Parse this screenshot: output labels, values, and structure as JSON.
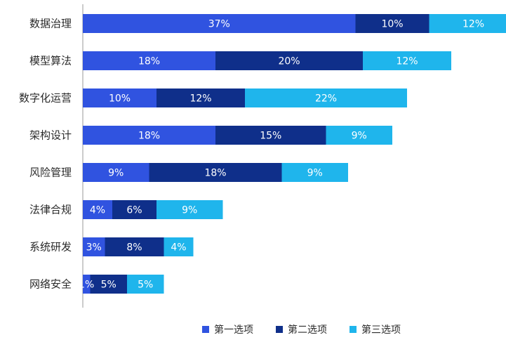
{
  "chart_data": {
    "type": "bar",
    "orientation": "horizontal",
    "stacked": true,
    "title": "",
    "xlabel": "",
    "ylabel": "",
    "grid": false,
    "legend_position": "bottom-right",
    "categories": [
      "数据治理",
      "模型算法",
      "数字化运营",
      "架构设计",
      "风险管理",
      "法律合规",
      "系统研发",
      "网络安全"
    ],
    "series": [
      {
        "name": "第一选项",
        "color": "#3053e0",
        "values": [
          37,
          18,
          10,
          18,
          9,
          4,
          3,
          1
        ],
        "labels": [
          "37%",
          "18%",
          "10%",
          "18%",
          "9%",
          "4%",
          "3%",
          "1%"
        ]
      },
      {
        "name": "第二选项",
        "color": "#0f2f8a",
        "values": [
          10,
          20,
          12,
          15,
          18,
          6,
          8,
          5
        ],
        "labels": [
          "10%",
          "20%",
          "12%",
          "15%",
          "18%",
          "6%",
          "8%",
          "5%"
        ]
      },
      {
        "name": "第三选项",
        "color": "#1fb5ec",
        "values": [
          12,
          12,
          22,
          9,
          9,
          9,
          4,
          5
        ],
        "labels": [
          "12%",
          "12%",
          "22%",
          "9%",
          "9%",
          "9%",
          "4%",
          "5%"
        ]
      }
    ]
  }
}
